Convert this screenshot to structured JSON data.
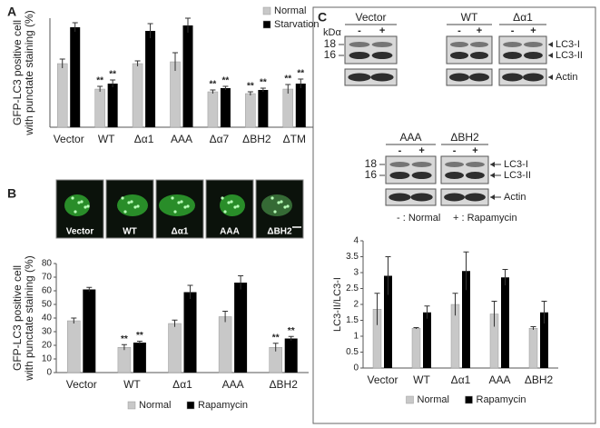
{
  "panel_labels": [
    "A",
    "B",
    "C"
  ],
  "cell_images": [
    "Vector",
    "WT",
    "Δα1",
    "AAA",
    "ΔBH2"
  ],
  "blots": [
    {
      "kda": "kDα",
      "markers": [
        "18",
        "16"
      ],
      "groups": [
        {
          "name": "Vector",
          "lanes": [
            "-",
            "+"
          ]
        },
        {
          "name": "WT",
          "lanes": [
            "-",
            "+"
          ]
        },
        {
          "name": "Δα1",
          "lanes": [
            "-",
            "+"
          ]
        }
      ],
      "bands": [
        "LC3-I",
        "LC3-II",
        "Actin"
      ]
    },
    {
      "markers": [
        "18",
        "16"
      ],
      "groups": [
        {
          "name": "AAA",
          "lanes": [
            "-",
            "+"
          ]
        },
        {
          "name": "ΔBH2",
          "lanes": [
            "-",
            "+"
          ]
        }
      ],
      "bands": [
        "LC3-I",
        "LC3-II",
        "Actin"
      ]
    }
  ],
  "blot_notes": [
    "- : Normal",
    "+ : Rapamycin"
  ],
  "chart_data": [
    {
      "type": "bar",
      "ylabel": [
        "GFP-LC3 positive cell",
        "with punctate staining (%)"
      ],
      "categories": [
        "Vector",
        "WT",
        "Δα1",
        "AAA",
        "Δα7",
        "ΔBH2",
        "ΔTM"
      ],
      "series": [
        {
          "name": "Normal",
          "color": "#c8c8c8",
          "values": [
            35,
            21,
            35,
            36,
            19.5,
            18.5,
            21
          ],
          "errors": [
            2.5,
            1.5,
            1.5,
            5,
            1,
            1,
            2.5
          ],
          "annotations": [
            null,
            "**",
            null,
            null,
            "**",
            "**",
            "**"
          ]
        },
        {
          "name": "Starvation",
          "color": "#000000",
          "values": [
            55,
            24,
            53,
            56,
            21.5,
            20.5,
            24
          ],
          "errors": [
            2.5,
            2,
            4,
            4,
            1,
            1,
            2.5
          ],
          "annotations": [
            null,
            "**",
            null,
            null,
            "**",
            "**",
            "**"
          ]
        }
      ],
      "ylim": [
        0,
        60
      ],
      "legend": "top-right"
    },
    {
      "type": "bar",
      "ylabel": [
        "GFP-LC3 positive cell",
        "with punctate staining (%)"
      ],
      "categories": [
        "Vector",
        "WT",
        "Δα1",
        "AAA",
        "ΔBH2"
      ],
      "series": [
        {
          "name": "Normal",
          "color": "#c8c8c8",
          "values": [
            38,
            18.5,
            36,
            41,
            18.5
          ],
          "errors": [
            2,
            2,
            2.5,
            4,
            3
          ],
          "annotations": [
            null,
            "**",
            null,
            null,
            "**"
          ]
        },
        {
          "name": "Rapamycin",
          "color": "#000000",
          "values": [
            61,
            22,
            59,
            66,
            25
          ],
          "errors": [
            1.5,
            1,
            5,
            5,
            1.5
          ],
          "annotations": [
            null,
            "**",
            null,
            null,
            "**"
          ]
        }
      ],
      "ylim": [
        0,
        80
      ],
      "yticks": [
        0,
        10,
        20,
        30,
        40,
        50,
        60,
        70,
        80
      ],
      "legend": "bottom"
    },
    {
      "type": "bar",
      "ylabel": "LC3-II/LC3-I",
      "categories": [
        "Vector",
        "WT",
        "Δα1",
        "AAA",
        "ΔBH2"
      ],
      "series": [
        {
          "name": "Normal",
          "color": "#c8c8c8",
          "values": [
            1.85,
            1.25,
            2.0,
            1.7,
            1.25
          ],
          "errors": [
            0.5,
            0.02,
            0.35,
            0.4,
            0.05
          ]
        },
        {
          "name": "Rapamycin",
          "color": "#000000",
          "values": [
            2.9,
            1.75,
            3.05,
            2.85,
            1.75
          ],
          "errors": [
            0.6,
            0.2,
            0.6,
            0.25,
            0.35
          ]
        }
      ],
      "ylim": [
        0,
        4
      ],
      "yticks": [
        0,
        0.5,
        1,
        1.5,
        2,
        2.5,
        3,
        3.5,
        4
      ],
      "legend": "bottom"
    }
  ]
}
